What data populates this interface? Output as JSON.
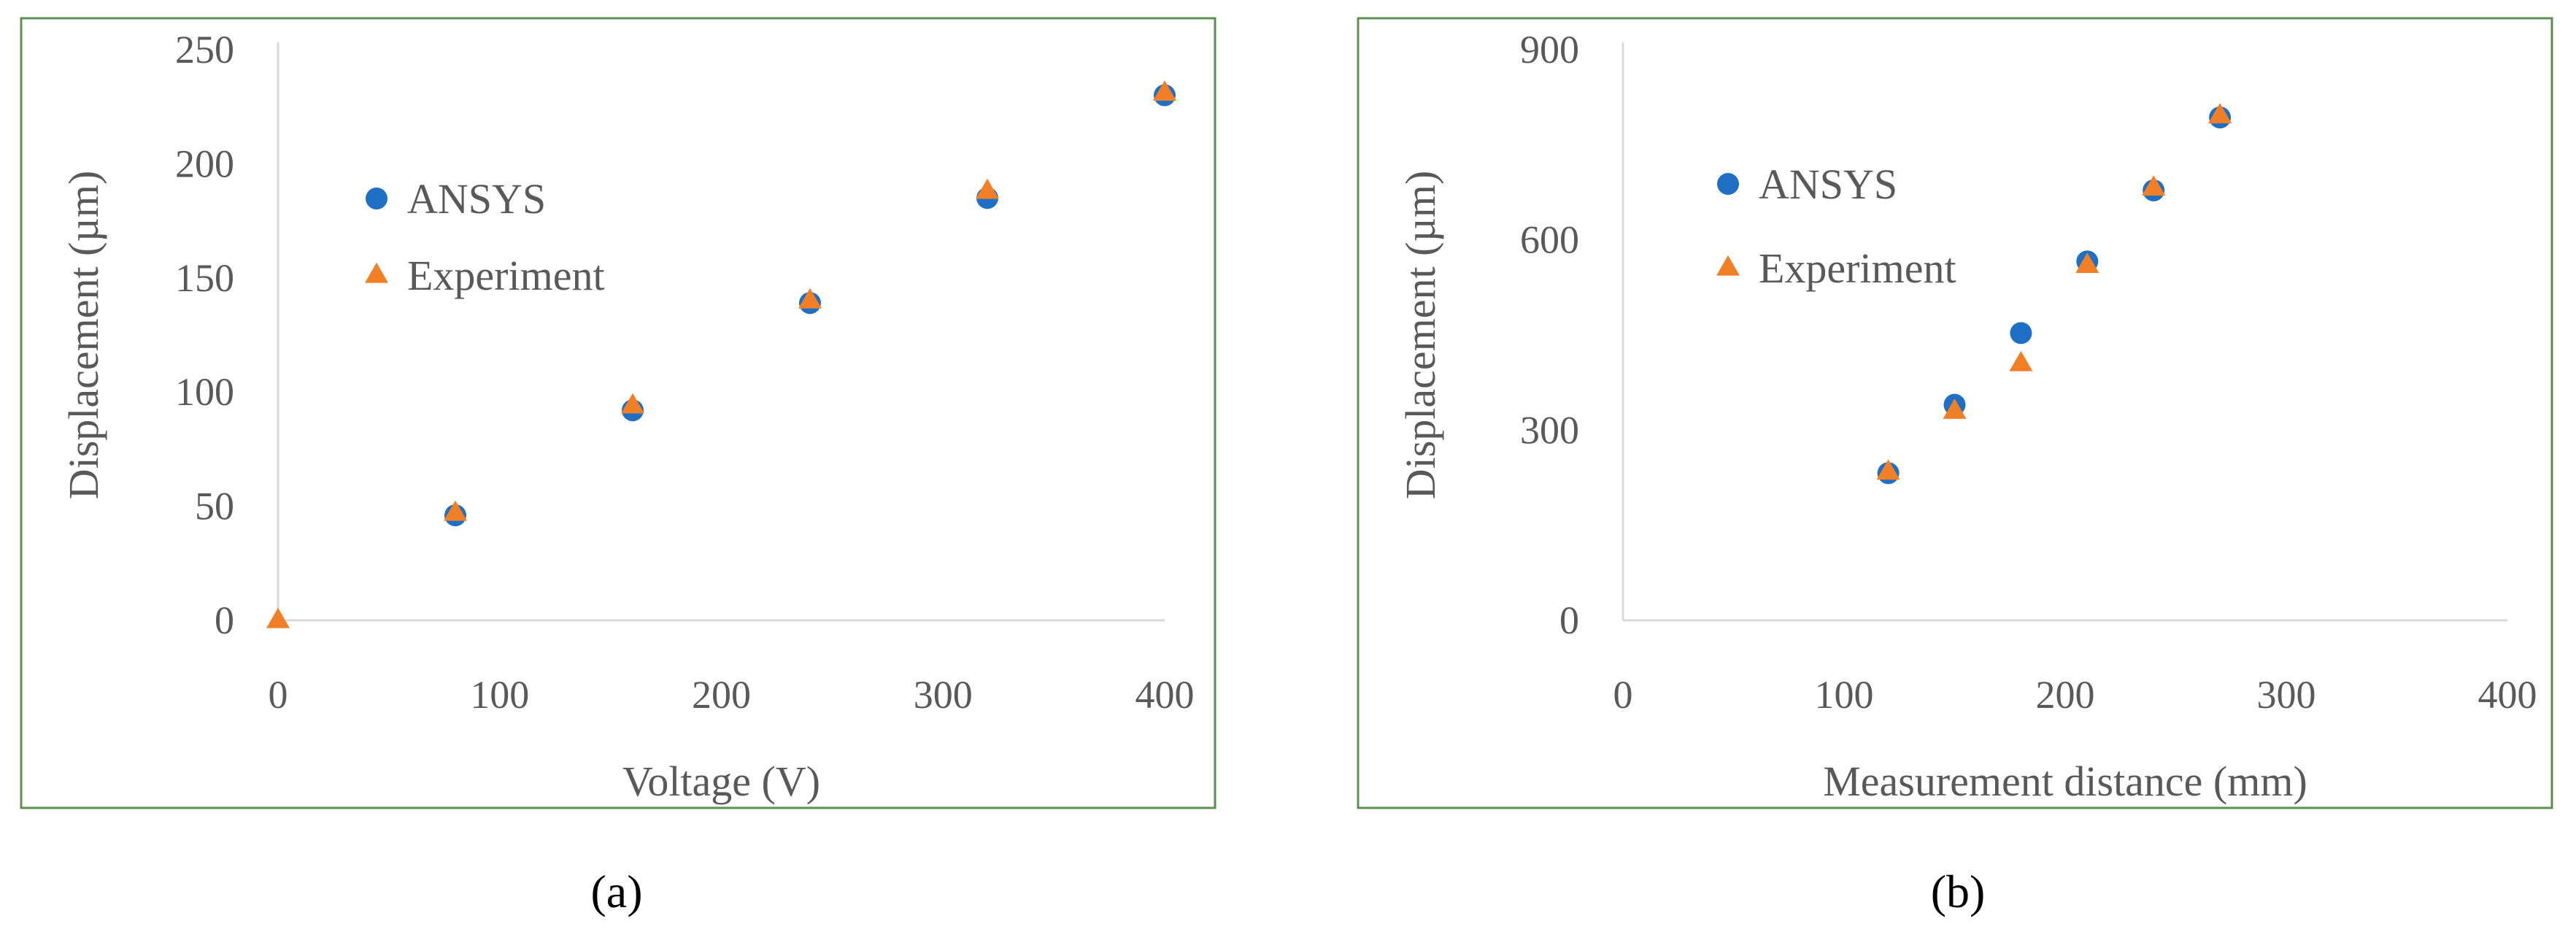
{
  "chart_data": [
    {
      "type": "scatter",
      "panel_label": "(a)",
      "xlabel": "Voltage (V)",
      "ylabel": "Displacement (µm)",
      "xlim": [
        0,
        400
      ],
      "ylim": [
        0,
        250
      ],
      "xticks": [
        0,
        100,
        200,
        300,
        400
      ],
      "yticks": [
        0,
        50,
        100,
        150,
        200,
        250
      ],
      "grid": false,
      "legend_position": "upper-left",
      "series": [
        {
          "name": "ANSYS",
          "marker": "circle",
          "color": "#1F6FC5",
          "x": [
            80,
            160,
            240,
            320,
            400
          ],
          "y": [
            46,
            92,
            139,
            185,
            230
          ]
        },
        {
          "name": "Experiment",
          "marker": "triangle",
          "color": "#F07F26",
          "x": [
            0,
            80,
            160,
            240,
            320,
            400
          ],
          "y": [
            0,
            47,
            94,
            140,
            188,
            231
          ]
        }
      ]
    },
    {
      "type": "scatter",
      "panel_label": "(b)",
      "xlabel": "Measurement distance (mm)",
      "ylabel": "Displacement (µm)",
      "xlim": [
        0,
        400
      ],
      "ylim": [
        0,
        900
      ],
      "xticks": [
        0,
        100,
        200,
        300,
        400
      ],
      "yticks": [
        0,
        300,
        600,
        900
      ],
      "grid": false,
      "legend_position": "upper-left",
      "series": [
        {
          "name": "ANSYS",
          "marker": "circle",
          "color": "#1F6FC5",
          "x": [
            120,
            150,
            180,
            210,
            240,
            270
          ],
          "y": [
            232,
            340,
            453,
            566,
            678,
            793
          ]
        },
        {
          "name": "Experiment",
          "marker": "triangle",
          "color": "#F07F26",
          "x": [
            120,
            150,
            180,
            210,
            240,
            270
          ],
          "y": [
            234,
            330,
            405,
            560,
            682,
            796
          ]
        }
      ]
    }
  ],
  "style": {
    "frame_color": "#5E8F52",
    "axis_color": "#D9D9D9",
    "tick_text_color": "#595959"
  }
}
